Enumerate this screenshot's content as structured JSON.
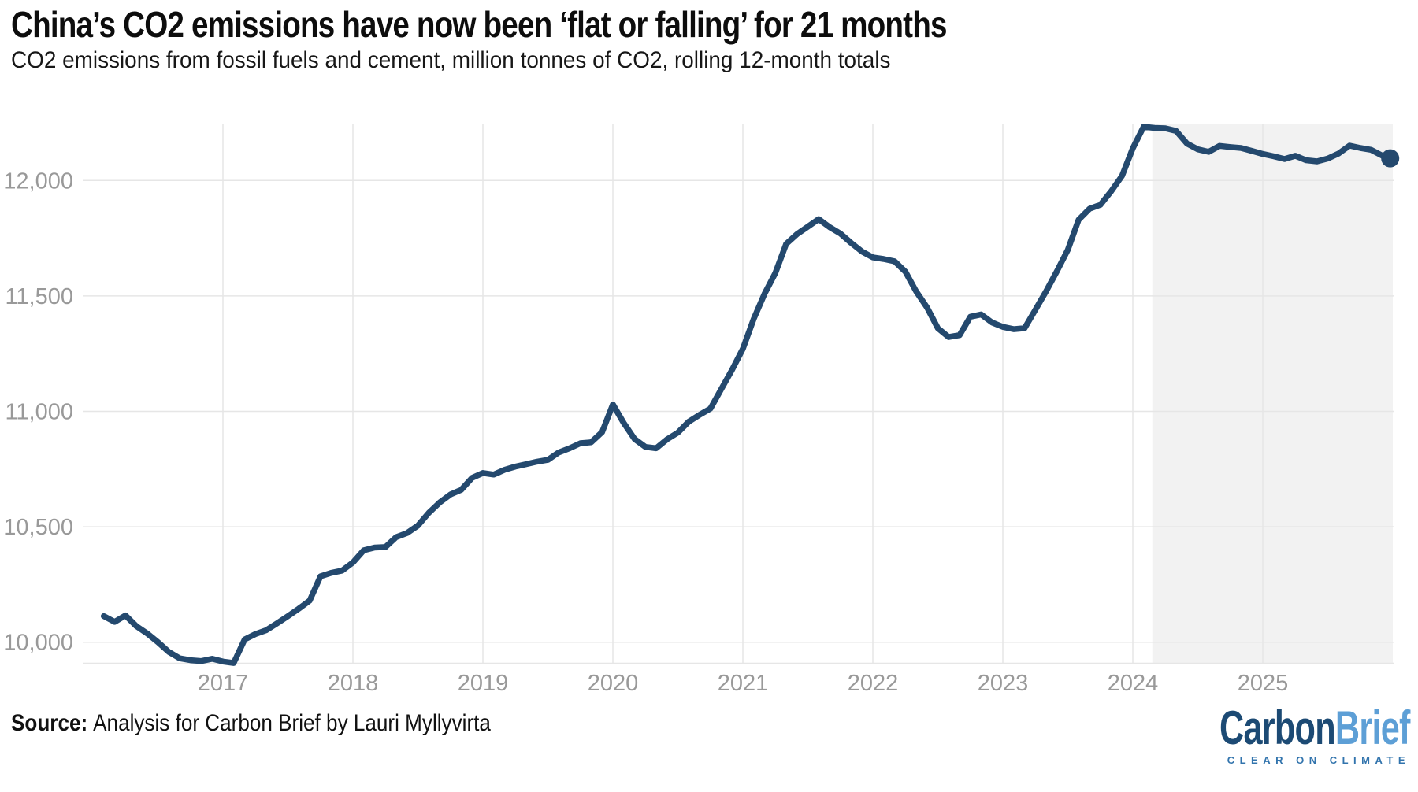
{
  "header": {
    "title": "China’s CO2 emissions have now been ‘flat or falling’ for 21 months",
    "subtitle": "CO2 emissions from fossil fuels and cement, million tonnes of CO2, rolling 12-month totals"
  },
  "footer": {
    "source_label": "Source:",
    "source_text": "Analysis for Carbon Brief by Lauri Myllyvirta"
  },
  "logo": {
    "part1": "Carbon",
    "part2": "Brief",
    "tagline": "CLEAR ON CLIMATE"
  },
  "chart_data": {
    "type": "line",
    "title": "China’s CO2 emissions have now been ‘flat or falling’ for 21 months",
    "subtitle": "CO2 emissions from fossil fuels and cement, million tonnes of CO2, rolling 12-month totals",
    "xlabel": "",
    "ylabel": "",
    "grid": true,
    "x_ticks": [
      2017,
      2018,
      2019,
      2020,
      2021,
      2022,
      2023,
      2024,
      2025
    ],
    "y_ticks": [
      10000,
      10500,
      11000,
      11500,
      12000
    ],
    "ylim": [
      9910,
      12246
    ],
    "xlim": [
      2016.0,
      2026.05
    ],
    "line_color": "#24496e",
    "gridline_color": "#e6e6e6",
    "tick_label_color": "#999999",
    "highlight_band": {
      "from": 2024.15,
      "to": 2026.0,
      "color": "#f2f2f2"
    },
    "end_dot": true,
    "series": [
      {
        "name": "China CO2 emissions, rolling 12-month total (MtCO2)",
        "points": [
          [
            2016.083,
            10113
          ],
          [
            2016.167,
            10088
          ],
          [
            2016.25,
            10116
          ],
          [
            2016.333,
            10070
          ],
          [
            2016.417,
            10038
          ],
          [
            2016.5,
            10000
          ],
          [
            2016.583,
            9958
          ],
          [
            2016.667,
            9930
          ],
          [
            2016.75,
            9922
          ],
          [
            2016.833,
            9918
          ],
          [
            2016.917,
            9928
          ],
          [
            2017.0,
            9916
          ],
          [
            2017.083,
            9910
          ],
          [
            2017.167,
            10012
          ],
          [
            2017.25,
            10035
          ],
          [
            2017.333,
            10052
          ],
          [
            2017.417,
            10082
          ],
          [
            2017.5,
            10113
          ],
          [
            2017.583,
            10145
          ],
          [
            2017.667,
            10180
          ],
          [
            2017.75,
            10285
          ],
          [
            2017.833,
            10300
          ],
          [
            2017.917,
            10310
          ],
          [
            2018.0,
            10345
          ],
          [
            2018.083,
            10398
          ],
          [
            2018.167,
            10410
          ],
          [
            2018.25,
            10412
          ],
          [
            2018.333,
            10455
          ],
          [
            2018.417,
            10473
          ],
          [
            2018.5,
            10505
          ],
          [
            2018.583,
            10560
          ],
          [
            2018.667,
            10605
          ],
          [
            2018.75,
            10640
          ],
          [
            2018.833,
            10660
          ],
          [
            2018.917,
            10712
          ],
          [
            2019.0,
            10733
          ],
          [
            2019.083,
            10726
          ],
          [
            2019.167,
            10747
          ],
          [
            2019.25,
            10761
          ],
          [
            2019.333,
            10771
          ],
          [
            2019.417,
            10782
          ],
          [
            2019.5,
            10790
          ],
          [
            2019.583,
            10822
          ],
          [
            2019.667,
            10840
          ],
          [
            2019.75,
            10862
          ],
          [
            2019.833,
            10866
          ],
          [
            2019.917,
            10910
          ],
          [
            2020.0,
            11030
          ],
          [
            2020.083,
            10950
          ],
          [
            2020.167,
            10880
          ],
          [
            2020.25,
            10846
          ],
          [
            2020.333,
            10840
          ],
          [
            2020.417,
            10879
          ],
          [
            2020.5,
            10908
          ],
          [
            2020.583,
            10955
          ],
          [
            2020.667,
            10985
          ],
          [
            2020.75,
            11012
          ],
          [
            2020.833,
            11095
          ],
          [
            2020.917,
            11180
          ],
          [
            2021.0,
            11271
          ],
          [
            2021.083,
            11400
          ],
          [
            2021.167,
            11510
          ],
          [
            2021.25,
            11600
          ],
          [
            2021.333,
            11725
          ],
          [
            2021.417,
            11768
          ],
          [
            2021.5,
            11800
          ],
          [
            2021.583,
            11833
          ],
          [
            2021.667,
            11798
          ],
          [
            2021.75,
            11770
          ],
          [
            2021.833,
            11730
          ],
          [
            2021.917,
            11692
          ],
          [
            2022.0,
            11667
          ],
          [
            2022.083,
            11660
          ],
          [
            2022.167,
            11650
          ],
          [
            2022.25,
            11605
          ],
          [
            2022.333,
            11520
          ],
          [
            2022.417,
            11450
          ],
          [
            2022.5,
            11360
          ],
          [
            2022.583,
            11322
          ],
          [
            2022.667,
            11330
          ],
          [
            2022.75,
            11410
          ],
          [
            2022.833,
            11420
          ],
          [
            2022.917,
            11385
          ],
          [
            2023.0,
            11366
          ],
          [
            2023.083,
            11356
          ],
          [
            2023.167,
            11360
          ],
          [
            2023.25,
            11440
          ],
          [
            2023.333,
            11520
          ],
          [
            2023.417,
            11608
          ],
          [
            2023.5,
            11700
          ],
          [
            2023.583,
            11830
          ],
          [
            2023.667,
            11878
          ],
          [
            2023.75,
            11895
          ],
          [
            2023.833,
            11953
          ],
          [
            2023.917,
            12020
          ],
          [
            2024.0,
            12140
          ],
          [
            2024.083,
            12233
          ],
          [
            2024.167,
            12228
          ],
          [
            2024.25,
            12226
          ],
          [
            2024.333,
            12215
          ],
          [
            2024.417,
            12160
          ],
          [
            2024.5,
            12135
          ],
          [
            2024.583,
            12124
          ],
          [
            2024.667,
            12150
          ],
          [
            2024.75,
            12145
          ],
          [
            2024.833,
            12141
          ],
          [
            2024.917,
            12128
          ],
          [
            2025.0,
            12115
          ],
          [
            2025.083,
            12105
          ],
          [
            2025.167,
            12093
          ],
          [
            2025.25,
            12107
          ],
          [
            2025.333,
            12088
          ],
          [
            2025.417,
            12083
          ],
          [
            2025.5,
            12095
          ],
          [
            2025.583,
            12117
          ],
          [
            2025.667,
            12151
          ],
          [
            2025.75,
            12141
          ],
          [
            2025.833,
            12133
          ],
          [
            2025.917,
            12108
          ],
          [
            2025.98,
            12096
          ]
        ]
      }
    ]
  }
}
